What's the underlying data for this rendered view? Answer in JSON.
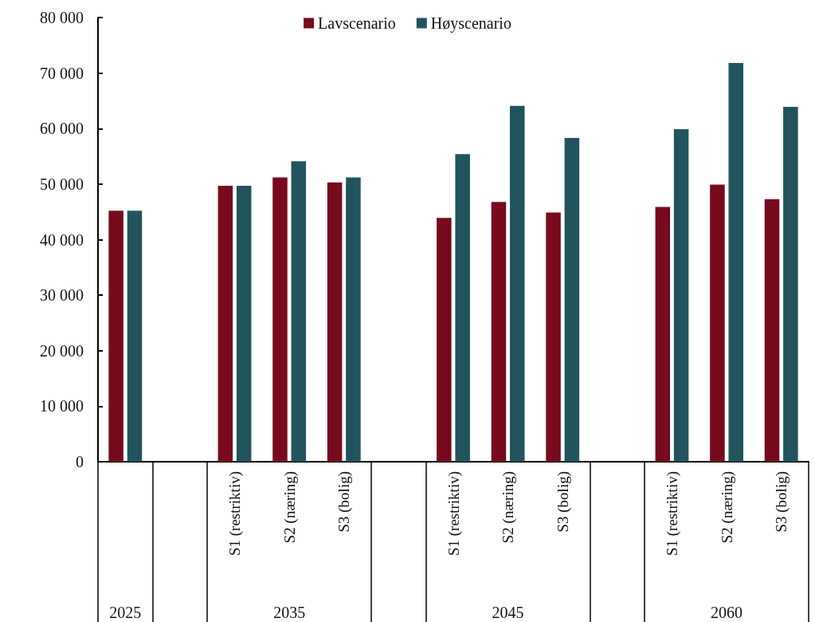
{
  "chart_data": {
    "type": "bar",
    "categories": [
      null,
      null,
      "S1 (restriktiv)",
      "S2 (næring)",
      "S3 (bolig)",
      null,
      "S1 (restriktiv)",
      "S2 (næring)",
      "S3 (bolig)",
      null,
      "S1 (restriktiv)",
      "S2 (næring)",
      "S3 (bolig)"
    ],
    "series": [
      {
        "name": "Lavscenario",
        "color": "#780a1e",
        "values": [
          45200,
          null,
          49700,
          51200,
          50300,
          null,
          43900,
          46800,
          44900,
          null,
          45900,
          49900,
          47300
        ]
      },
      {
        "name": "Høyscenario",
        "color": "#22545e",
        "values": [
          45200,
          null,
          49700,
          54100,
          51200,
          null,
          55400,
          64100,
          58300,
          null,
          59900,
          71800,
          63900
        ]
      }
    ],
    "ylim": [
      0,
      80000
    ],
    "yticks": [
      {
        "value": 0,
        "label": "0"
      },
      {
        "value": 10000,
        "label": "10 000"
      },
      {
        "value": 20000,
        "label": "20 000"
      },
      {
        "value": 30000,
        "label": "30 000"
      },
      {
        "value": 40000,
        "label": "40 000"
      },
      {
        "value": 50000,
        "label": "50 000"
      },
      {
        "value": 60000,
        "label": "60 000"
      },
      {
        "value": 70000,
        "label": "70 000"
      },
      {
        "value": 80000,
        "label": "80 000"
      }
    ],
    "annotations": [
      "2025",
      "2035",
      "2045",
      "2060"
    ],
    "legend": "top",
    "grid": false
  }
}
